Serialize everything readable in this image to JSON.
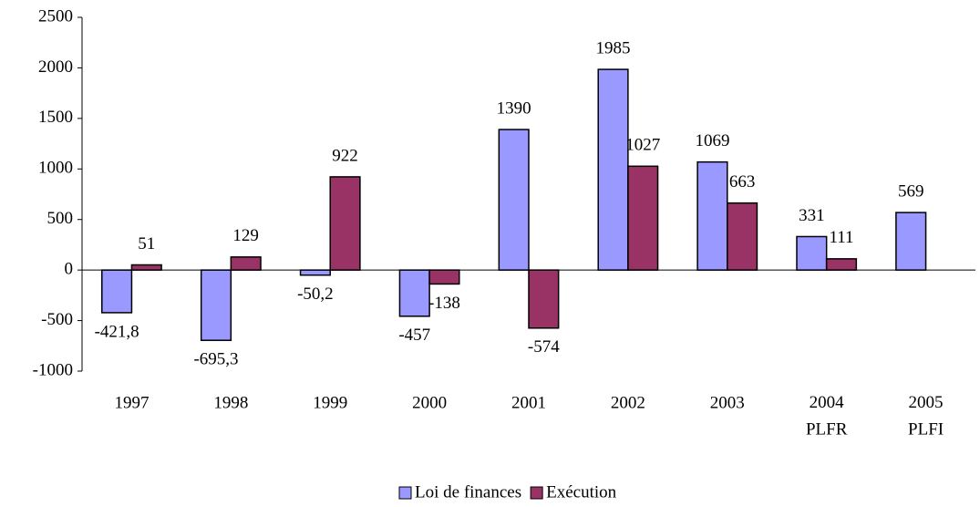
{
  "chart_data": {
    "type": "bar",
    "categories": [
      "1997",
      "1998",
      "1999",
      "2000",
      "2001",
      "2002",
      "2003",
      "2004\nPLFR",
      "2005\nPLFI"
    ],
    "series": [
      {
        "name": "Loi de finances",
        "color": "#9999ff",
        "values": [
          -421.8,
          -695.3,
          -50.2,
          -457,
          1390,
          1985,
          1069,
          331,
          569
        ],
        "value_labels": [
          "-421,8",
          "-695,3",
          "-50,2",
          "-457",
          "1390",
          "1985",
          "1069",
          "331",
          "569"
        ]
      },
      {
        "name": "Exécution",
        "color": "#993366",
        "values": [
          51,
          129,
          922,
          -138,
          -574,
          1027,
          663,
          111,
          null
        ],
        "value_labels": [
          "51",
          "129",
          "922",
          "-138",
          "-574",
          "1027",
          "663",
          "111",
          null
        ]
      }
    ],
    "ylim": [
      -1000,
      2500
    ],
    "yticks": [
      -1000,
      -500,
      0,
      500,
      1000,
      1500,
      2000,
      2500
    ],
    "legend": "bottom"
  }
}
